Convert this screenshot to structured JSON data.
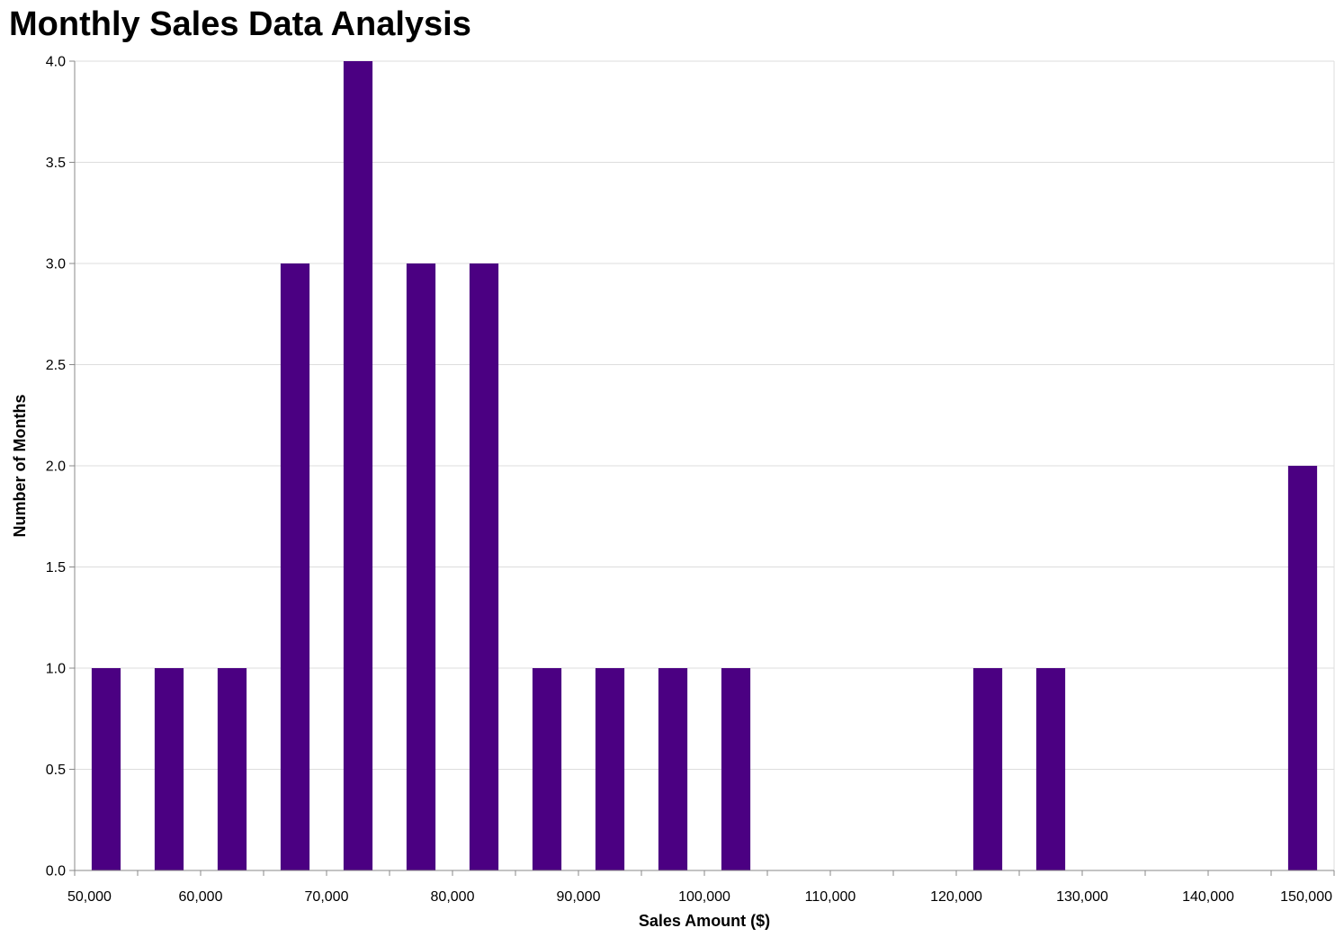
{
  "chart_data": {
    "type": "bar",
    "title": "Monthly Sales Data Analysis",
    "xlabel": "Sales Amount ($)",
    "ylabel": "Number of Months",
    "bin_width": 5000,
    "bins": [
      {
        "start": 50000,
        "end": 55000,
        "count": 1
      },
      {
        "start": 55000,
        "end": 60000,
        "count": 1
      },
      {
        "start": 60000,
        "end": 65000,
        "count": 1
      },
      {
        "start": 65000,
        "end": 70000,
        "count": 3
      },
      {
        "start": 70000,
        "end": 75000,
        "count": 4
      },
      {
        "start": 75000,
        "end": 80000,
        "count": 3
      },
      {
        "start": 80000,
        "end": 85000,
        "count": 3
      },
      {
        "start": 85000,
        "end": 90000,
        "count": 1
      },
      {
        "start": 90000,
        "end": 95000,
        "count": 1
      },
      {
        "start": 95000,
        "end": 100000,
        "count": 1
      },
      {
        "start": 100000,
        "end": 105000,
        "count": 1
      },
      {
        "start": 120000,
        "end": 125000,
        "count": 1
      },
      {
        "start": 125000,
        "end": 130000,
        "count": 1
      },
      {
        "start": 145000,
        "end": 150000,
        "count": 2
      }
    ],
    "xlim": [
      50000,
      150000
    ],
    "ylim": [
      0,
      4
    ],
    "x_ticks": [
      "50,000",
      "60,000",
      "70,000",
      "80,000",
      "90,000",
      "100,000",
      "110,000",
      "120,000",
      "130,000",
      "140,000",
      "150,000"
    ],
    "y_ticks": [
      "0.0",
      "0.5",
      "1.0",
      "1.5",
      "2.0",
      "2.5",
      "3.0",
      "3.5",
      "4.0"
    ],
    "grid": true,
    "bar_color": "#4b0082"
  }
}
